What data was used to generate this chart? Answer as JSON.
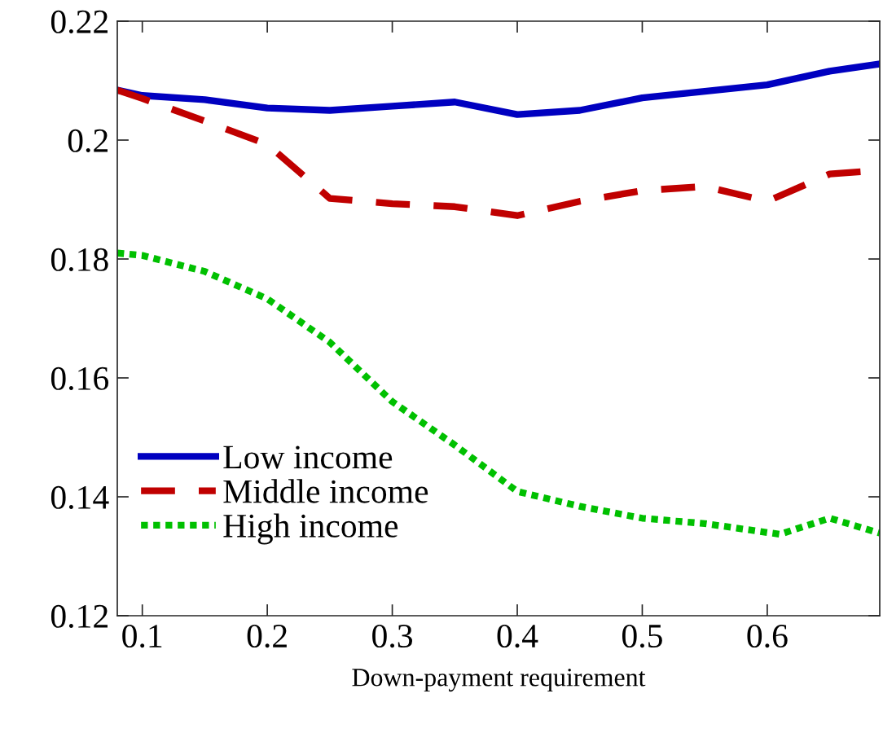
{
  "chart_data": {
    "type": "line",
    "xlabel": "Down-payment requirement",
    "x": [
      0.08,
      0.1,
      0.15,
      0.2,
      0.25,
      0.3,
      0.35,
      0.4,
      0.45,
      0.5,
      0.55,
      0.6,
      0.65,
      0.69
    ],
    "series": [
      {
        "name": "Low income",
        "color": "#0000c0",
        "line_style": "solid",
        "values": [
          0.2084,
          0.2075,
          0.2068,
          0.2054,
          0.205,
          0.2057,
          0.2064,
          0.2043,
          0.205,
          0.2071,
          0.2082,
          0.2093,
          0.2116,
          0.2128
        ]
      },
      {
        "name": "Middle income",
        "color": "#c00000",
        "line_style": "dashed",
        "values": [
          0.2084,
          0.207,
          0.2032,
          0.1993,
          0.1902,
          0.1893,
          0.1888,
          0.1873,
          0.1897,
          0.1915,
          0.1922,
          0.1897,
          0.1943,
          0.1949
        ]
      },
      {
        "name": "High income",
        "color": "#00c000",
        "line_style": "dotted",
        "x": [
          0.08,
          0.1,
          0.15,
          0.2,
          0.25,
          0.3,
          0.35,
          0.4,
          0.45,
          0.5,
          0.55,
          0.61,
          0.65,
          0.69
        ],
        "values": [
          0.181,
          0.1806,
          0.1779,
          0.1733,
          0.166,
          0.156,
          0.1487,
          0.1409,
          0.1384,
          0.1364,
          0.1355,
          0.1337,
          0.1364,
          0.1339
        ]
      }
    ],
    "xlim": [
      0.08,
      0.69
    ],
    "xticks": [
      0.1,
      0.2,
      0.3,
      0.4,
      0.5,
      0.6
    ],
    "ylim": [
      0.12,
      0.22
    ],
    "yticks": [
      0.12,
      0.14,
      0.16,
      0.18,
      0.2,
      0.22
    ],
    "grid": false,
    "legend": "bottom left",
    "marker": "none"
  }
}
